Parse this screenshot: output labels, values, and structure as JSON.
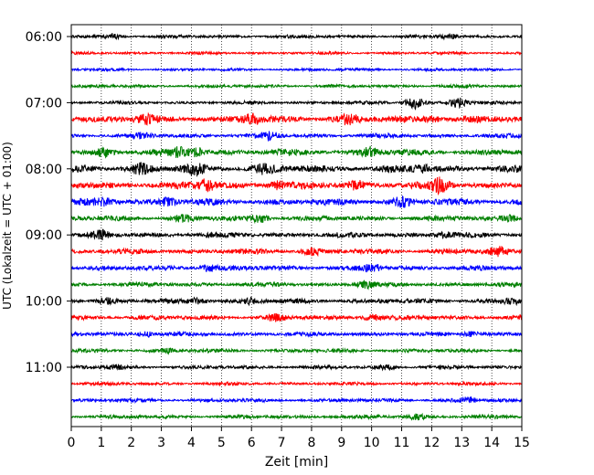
{
  "chart_data": {
    "type": "line",
    "title": "",
    "xlabel": "Zeit  [min]",
    "ylabel": "UTC (Lokalzeit = UTC + 01:00)",
    "xlim": [
      0,
      15
    ],
    "x_ticks": [
      "0",
      "1",
      "2",
      "3",
      "4",
      "5",
      "6",
      "7",
      "8",
      "9",
      "10",
      "11",
      "12",
      "13",
      "14",
      "15"
    ],
    "y_tick_labels": [
      "06:00",
      "07:00",
      "08:00",
      "09:00",
      "10:00",
      "11:00"
    ],
    "rows_per_hour": 4,
    "row_minutes": 15,
    "grid": {
      "vertical_dotted": true,
      "horizontal": false
    },
    "series": [
      {
        "start": "06:00",
        "color": "#000000",
        "amplitude": 0.35,
        "events": [
          [
            1.4,
            0.5
          ],
          [
            12.6,
            0.6
          ]
        ]
      },
      {
        "start": "06:15",
        "color": "#ff0000",
        "amplitude": 0.3,
        "events": []
      },
      {
        "start": "06:30",
        "color": "#0000ff",
        "amplitude": 0.3,
        "events": []
      },
      {
        "start": "06:45",
        "color": "#008000",
        "amplitude": 0.35,
        "events": []
      },
      {
        "start": "07:00",
        "color": "#000000",
        "amplitude": 0.35,
        "events": [
          [
            11.4,
            1.8
          ],
          [
            12.9,
            1.2
          ]
        ]
      },
      {
        "start": "07:15",
        "color": "#ff0000",
        "amplitude": 0.75,
        "events": [
          [
            2.5,
            0.6
          ],
          [
            6.0,
            1.0
          ],
          [
            9.2,
            0.8
          ],
          [
            12.0,
            0.7
          ]
        ]
      },
      {
        "start": "07:30",
        "color": "#0000ff",
        "amplitude": 0.45,
        "events": [
          [
            2.3,
            0.6
          ],
          [
            6.6,
            0.9
          ]
        ]
      },
      {
        "start": "07:45",
        "color": "#008000",
        "amplitude": 0.65,
        "events": [
          [
            1.1,
            0.8
          ],
          [
            3.6,
            0.9
          ],
          [
            4.2,
            1.0
          ],
          [
            9.9,
            1.2
          ]
        ]
      },
      {
        "start": "08:00",
        "color": "#000000",
        "amplitude": 0.8,
        "events": [
          [
            2.3,
            1.1
          ],
          [
            4.1,
            1.0
          ],
          [
            6.4,
            0.9
          ],
          [
            11.7,
            0.6
          ]
        ]
      },
      {
        "start": "08:15",
        "color": "#ff0000",
        "amplitude": 0.75,
        "events": [
          [
            4.5,
            1.3
          ],
          [
            6.9,
            0.8
          ],
          [
            9.5,
            0.9
          ],
          [
            12.3,
            1.6
          ]
        ]
      },
      {
        "start": "08:30",
        "color": "#0000ff",
        "amplitude": 0.7,
        "events": [
          [
            1.1,
            0.8
          ],
          [
            3.2,
            0.8
          ],
          [
            11.0,
            0.9
          ]
        ]
      },
      {
        "start": "08:45",
        "color": "#008000",
        "amplitude": 0.55,
        "events": [
          [
            3.7,
            0.7
          ],
          [
            6.3,
            0.9
          ],
          [
            14.6,
            0.7
          ]
        ]
      },
      {
        "start": "09:00",
        "color": "#000000",
        "amplitude": 0.55,
        "events": [
          [
            1.0,
            0.8
          ],
          [
            12.4,
            0.6
          ]
        ]
      },
      {
        "start": "09:15",
        "color": "#ff0000",
        "amplitude": 0.55,
        "events": [
          [
            8.0,
            0.9
          ],
          [
            14.2,
            0.8
          ]
        ]
      },
      {
        "start": "09:30",
        "color": "#0000ff",
        "amplitude": 0.55,
        "events": [
          [
            4.6,
            0.7
          ],
          [
            10.0,
            0.7
          ]
        ]
      },
      {
        "start": "09:45",
        "color": "#008000",
        "amplitude": 0.45,
        "events": [
          [
            9.8,
            0.9
          ]
        ]
      },
      {
        "start": "10:00",
        "color": "#000000",
        "amplitude": 0.5,
        "events": [
          [
            1.2,
            0.6
          ],
          [
            4.2,
            0.6
          ],
          [
            6.0,
            0.6
          ],
          [
            14.7,
            0.6
          ]
        ]
      },
      {
        "start": "10:15",
        "color": "#ff0000",
        "amplitude": 0.5,
        "events": [
          [
            6.8,
            0.6
          ],
          [
            10.0,
            0.7
          ]
        ]
      },
      {
        "start": "10:30",
        "color": "#0000ff",
        "amplitude": 0.45,
        "events": [
          [
            2.5,
            0.6
          ],
          [
            13.3,
            0.6
          ]
        ]
      },
      {
        "start": "10:45",
        "color": "#008000",
        "amplitude": 0.4,
        "events": [
          [
            3.2,
            0.5
          ]
        ]
      },
      {
        "start": "11:00",
        "color": "#000000",
        "amplitude": 0.4,
        "events": [
          [
            1.4,
            0.5
          ],
          [
            10.5,
            0.5
          ]
        ]
      },
      {
        "start": "11:15",
        "color": "#ff0000",
        "amplitude": 0.35,
        "events": []
      },
      {
        "start": "11:30",
        "color": "#0000ff",
        "amplitude": 0.4,
        "events": [
          [
            13.2,
            0.6
          ]
        ]
      },
      {
        "start": "11:45",
        "color": "#008000",
        "amplitude": 0.4,
        "events": [
          [
            11.5,
            0.6
          ]
        ]
      }
    ]
  }
}
